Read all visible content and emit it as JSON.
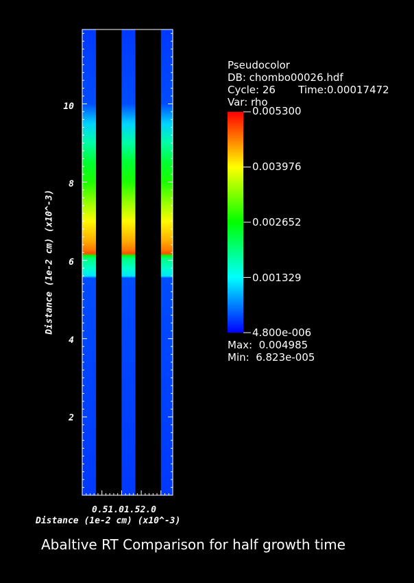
{
  "legend": {
    "plot_type": "Pseudocolor",
    "db": "DB: chombo00026.hdf",
    "cycle_time": "Cycle: 26       Time:0.00017472",
    "var": "Var: rho",
    "max": "Max:  0.004985",
    "min": "Min:  6.823e-005",
    "colorbar_labels": [
      "0.005300",
      "0.003976",
      "0.002652",
      "0.001329",
      "4.800e-006"
    ]
  },
  "caption": "Abaltive RT Comparison for half growth time",
  "chart_data": {
    "type": "heatmap",
    "variable": "rho",
    "xlabel": "Distance (1e-2 cm) (x10^-3)",
    "ylabel": "Distance (1e-2 cm) (x10^-3)",
    "x_tick_labels_text": "0.51.01.52.0",
    "y_tick_labels": [
      "10",
      "8",
      "6",
      "4",
      "2"
    ],
    "y_ticks": [
      10,
      8,
      6,
      4,
      2
    ],
    "xlim": [
      0,
      2.3
    ],
    "ylim": [
      0,
      11.9
    ],
    "colorbar_range": [
      4.8e-06,
      0.0053
    ],
    "colormap": [
      "#0000ff",
      "#00ffff",
      "#00ff00",
      "#ffff00",
      "#ff0000"
    ],
    "series": [
      {
        "x_range": [
          0,
          0.35
        ],
        "interface_y": 6.15
      },
      {
        "x_range": [
          1.0,
          1.35
        ],
        "interface_y": 6.15
      },
      {
        "x_range": [
          2.0,
          2.3
        ],
        "interface_y": 6.15
      }
    ],
    "profile": {
      "y": [
        0,
        5.55,
        5.6,
        5.8,
        6.05,
        6.12,
        6.18,
        6.25,
        6.5,
        7.0,
        7.5,
        8.0,
        8.5,
        9.0,
        9.5,
        10.0,
        11.9
      ],
      "rho": [
        0.0003,
        0.0004,
        0.0012,
        0.0016,
        0.002,
        0.0026,
        0.0049,
        0.0047,
        0.0044,
        0.004,
        0.0034,
        0.0028,
        0.0024,
        0.0018,
        0.0011,
        0.0004,
        0.0003
      ]
    }
  }
}
